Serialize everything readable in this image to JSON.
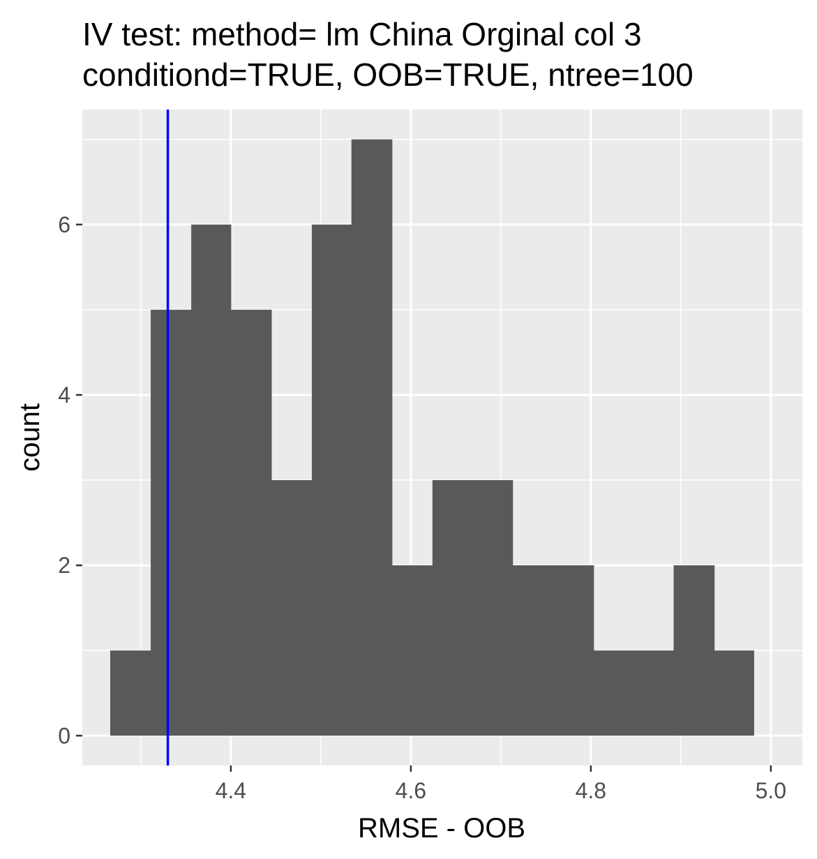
{
  "chart_data": {
    "type": "histogram",
    "title": "IV test: method= lm China Orginal col 3",
    "subtitle": "conditiond=TRUE, OOB=TRUE, ntree=100",
    "xlabel": "RMSE - OOB",
    "ylabel": "count",
    "xlim": [
      4.235,
      5.035
    ],
    "ylim": [
      -0.35,
      7.35
    ],
    "x_ticks": [
      4.4,
      4.6,
      4.8,
      5.0
    ],
    "x_tick_labels": [
      "4.4",
      "4.6",
      "4.8",
      "5.0"
    ],
    "y_ticks": [
      0,
      2,
      4,
      6
    ],
    "y_tick_labels": [
      "0",
      "2",
      "4",
      "6"
    ],
    "bin_width": 0.0447,
    "bins": [
      {
        "x_start": 4.266,
        "x_end": 4.311,
        "count": 1
      },
      {
        "x_start": 4.311,
        "x_end": 4.356,
        "count": 5
      },
      {
        "x_start": 4.356,
        "x_end": 4.4,
        "count": 6
      },
      {
        "x_start": 4.4,
        "x_end": 4.445,
        "count": 5
      },
      {
        "x_start": 4.445,
        "x_end": 4.49,
        "count": 3
      },
      {
        "x_start": 4.49,
        "x_end": 4.534,
        "count": 6
      },
      {
        "x_start": 4.534,
        "x_end": 4.579,
        "count": 7
      },
      {
        "x_start": 4.579,
        "x_end": 4.624,
        "count": 2
      },
      {
        "x_start": 4.624,
        "x_end": 4.669,
        "count": 3
      },
      {
        "x_start": 4.669,
        "x_end": 4.713,
        "count": 3
      },
      {
        "x_start": 4.713,
        "x_end": 4.758,
        "count": 2
      },
      {
        "x_start": 4.758,
        "x_end": 4.803,
        "count": 2
      },
      {
        "x_start": 4.803,
        "x_end": 4.847,
        "count": 1
      },
      {
        "x_start": 4.847,
        "x_end": 4.892,
        "count": 1
      },
      {
        "x_start": 4.892,
        "x_end": 4.937,
        "count": 2
      },
      {
        "x_start": 4.937,
        "x_end": 4.981,
        "count": 1
      }
    ],
    "reference_line": {
      "x": 4.33
    },
    "grid": true,
    "legend": "none"
  },
  "colors": {
    "panel_background": "#ebebeb",
    "grid_major": "#ffffff",
    "bar_fill": "#595959",
    "reference_line": "#0000ff",
    "tick_text": "#4d4d4d",
    "tick_mark": "#333333"
  }
}
